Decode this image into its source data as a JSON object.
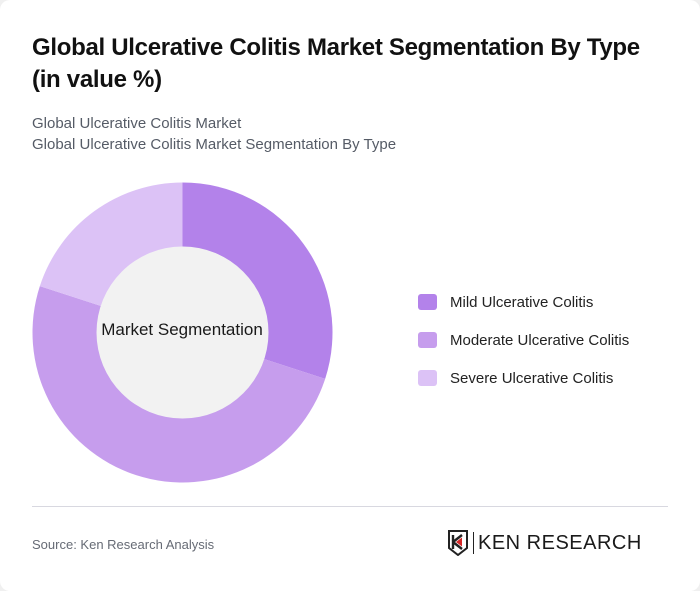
{
  "header": {
    "title": "Global Ulcerative Colitis Market Segmentation By Type (in value %)",
    "subtitle_line1": "Global Ulcerative Colitis Market",
    "subtitle_line2": "Global Ulcerative Colitis Market Segmentation By Type"
  },
  "chart": {
    "center_label": "Market Segmentation"
  },
  "legend": {
    "items": [
      {
        "label": "Mild Ulcerative Colitis",
        "color": "#b382ea"
      },
      {
        "label": "Moderate Ulcerative Colitis",
        "color": "#c69ded"
      },
      {
        "label": "Severe Ulcerative Colitis",
        "color": "#dcc2f6"
      }
    ]
  },
  "footer": {
    "source": "Source: Ken Research Analysis",
    "logo_text": "KEN RESEARCH"
  },
  "chart_data": {
    "type": "pie",
    "title": "Global Ulcerative Colitis Market Segmentation By Type (in value %)",
    "subtitle": "Global Ulcerative Colitis Market / Global Ulcerative Colitis Market Segmentation By Type",
    "center_label": "Market Segmentation",
    "donut": true,
    "categories": [
      "Mild Ulcerative Colitis",
      "Moderate Ulcerative Colitis",
      "Severe Ulcerative Colitis"
    ],
    "values": [
      30,
      50,
      20
    ],
    "colors": [
      "#b382ea",
      "#c69ded",
      "#dcc2f6"
    ],
    "legend_position": "right",
    "source": "Source: Ken Research Analysis"
  }
}
